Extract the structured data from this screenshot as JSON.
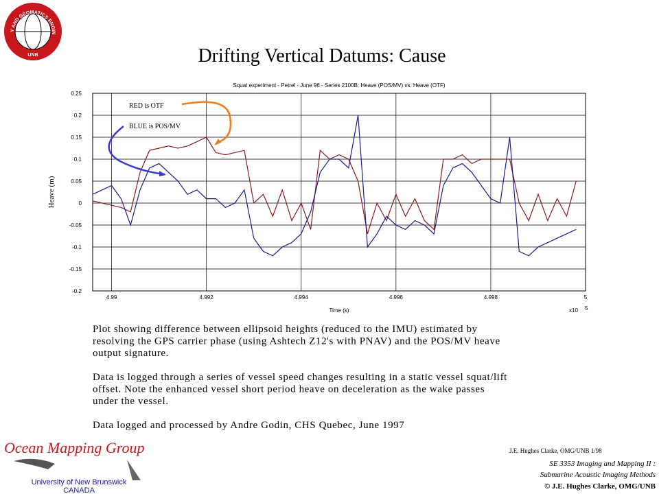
{
  "slide": {
    "title": "Drifting Vertical Datums: Cause",
    "logo_ring": "GEODESY AND GEOMATICS ENGINEERING",
    "logo_bottom": "UNB",
    "paragraphs": [
      [
        "Plot showing difference between ellipsoid heights (reduced to the IMU) estimated by",
        "resolving the GPS carrier phase (using Ashtech Z12's with PNAV) and the POS/MV heave",
        "output signature."
      ],
      [
        "Data is logged through a series of vessel speed changes resulting in a static vessel squat/lift",
        "offset. Note the enhanced vessel short period heave on deceleration as the wake passes",
        "under the vessel."
      ],
      [
        "Data logged and processed by Andre Godin, CHS Quebec, June 1997"
      ]
    ],
    "group_name": "Ocean Mapping Group",
    "university": "University of New Brunswick",
    "country": "CANADA",
    "footer": [
      "J.E. Hughes Clarke, OMG/UNB 1/98",
      "SE 3353 Imaging and Mapping II :",
      "Submarine Acoustic Imaging Methods",
      "© J.E. Hughes Clarke, OMG/UNB"
    ]
  },
  "chart_data": {
    "type": "line",
    "title": "Squat experiment - Petrel - June 96 - Series 2100B: Heave (POS/MV) vs. Heave (OTF)",
    "x_label": "Time (s)",
    "y_label": "Heave (m)",
    "x_multiplier": "x10",
    "x_exponent": "5",
    "annotations": [
      "RED is OTF",
      "BLUE is POS/MV"
    ],
    "xlim": [
      4.9896,
      5.0
    ],
    "ylim": [
      -0.2,
      0.25
    ],
    "xticks": [
      4.99,
      4.992,
      4.994,
      4.996,
      4.998,
      5
    ],
    "yticks": [
      0.25,
      0.2,
      0.15,
      0.1,
      0.05,
      0,
      -0.05,
      -0.1,
      -0.15,
      -0.2
    ],
    "grid": true,
    "x": [
      4.9896,
      4.9898,
      4.99,
      4.9902,
      4.9904,
      4.9906,
      4.9908,
      4.991,
      4.9912,
      4.9914,
      4.9916,
      4.9918,
      4.992,
      4.9922,
      4.9924,
      4.9926,
      4.9928,
      4.993,
      4.9932,
      4.9934,
      4.9936,
      4.9938,
      4.994,
      4.9942,
      4.9944,
      4.9946,
      4.9948,
      4.995,
      4.9952,
      4.9954,
      4.9956,
      4.9958,
      4.996,
      4.9962,
      4.9964,
      4.9966,
      4.9968,
      4.997,
      4.9972,
      4.9974,
      4.9976,
      4.9978,
      4.998,
      4.9982,
      4.9984,
      4.9986,
      4.9988,
      4.999,
      4.9992,
      4.9994,
      4.9996,
      4.9998
    ],
    "series": [
      {
        "name": "OTF",
        "color": "#8b1a1a",
        "values": [
          0.005,
          0.0,
          -0.005,
          -0.01,
          -0.02,
          0.07,
          0.12,
          0.125,
          0.13,
          0.125,
          0.13,
          0.14,
          0.15,
          0.115,
          0.11,
          0.115,
          0.12,
          0.0,
          0.02,
          -0.03,
          0.03,
          -0.04,
          0.0,
          -0.06,
          0.12,
          0.1,
          0.11,
          0.1,
          0.05,
          -0.07,
          0.0,
          -0.04,
          0.02,
          -0.03,
          0.01,
          -0.04,
          -0.06,
          0.1,
          0.1,
          0.11,
          0.09,
          0.1,
          0.1,
          0.1,
          0.1,
          0.0,
          -0.04,
          0.02,
          -0.04,
          0.01,
          -0.03,
          0.05
        ]
      },
      {
        "name": "POS/MV",
        "color": "#1a1a8c",
        "values": [
          0.02,
          0.03,
          0.04,
          0.01,
          -0.05,
          0.03,
          0.08,
          0.09,
          0.07,
          0.05,
          0.02,
          0.03,
          0.01,
          0.01,
          -0.01,
          0.0,
          0.03,
          -0.08,
          -0.11,
          -0.12,
          -0.1,
          -0.09,
          -0.07,
          -0.02,
          0.07,
          0.1,
          0.1,
          0.08,
          0.2,
          -0.1,
          -0.07,
          -0.03,
          -0.05,
          -0.06,
          -0.04,
          -0.05,
          -0.07,
          0.04,
          0.08,
          0.09,
          0.07,
          0.04,
          0.01,
          0.0,
          0.15,
          -0.11,
          -0.12,
          -0.1,
          -0.09,
          -0.08,
          -0.07,
          -0.06
        ]
      }
    ]
  }
}
